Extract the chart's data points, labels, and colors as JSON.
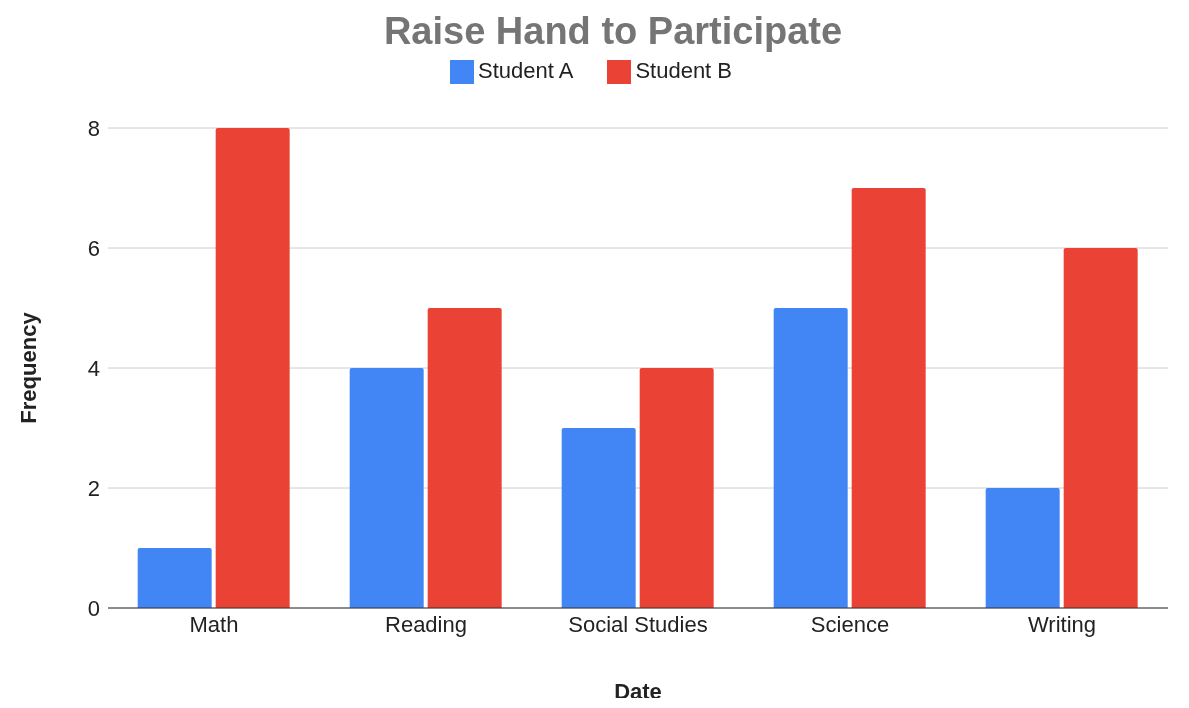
{
  "chart_data": {
    "type": "bar",
    "title": "Raise Hand to Participate",
    "xlabel": "Date",
    "ylabel": "Frequency",
    "categories": [
      "Math",
      "Reading",
      "Social Studies",
      "Science",
      "Writing"
    ],
    "series": [
      {
        "name": "Student A",
        "color": "#4285f4",
        "values": [
          1,
          4,
          3,
          5,
          2
        ]
      },
      {
        "name": "Student B",
        "color": "#ea4335",
        "values": [
          8,
          5,
          4,
          7,
          6
        ]
      }
    ],
    "ylim": [
      0,
      8
    ],
    "yticks": [
      0,
      2,
      4,
      6,
      8
    ],
    "grid": "y",
    "legend": "top"
  }
}
